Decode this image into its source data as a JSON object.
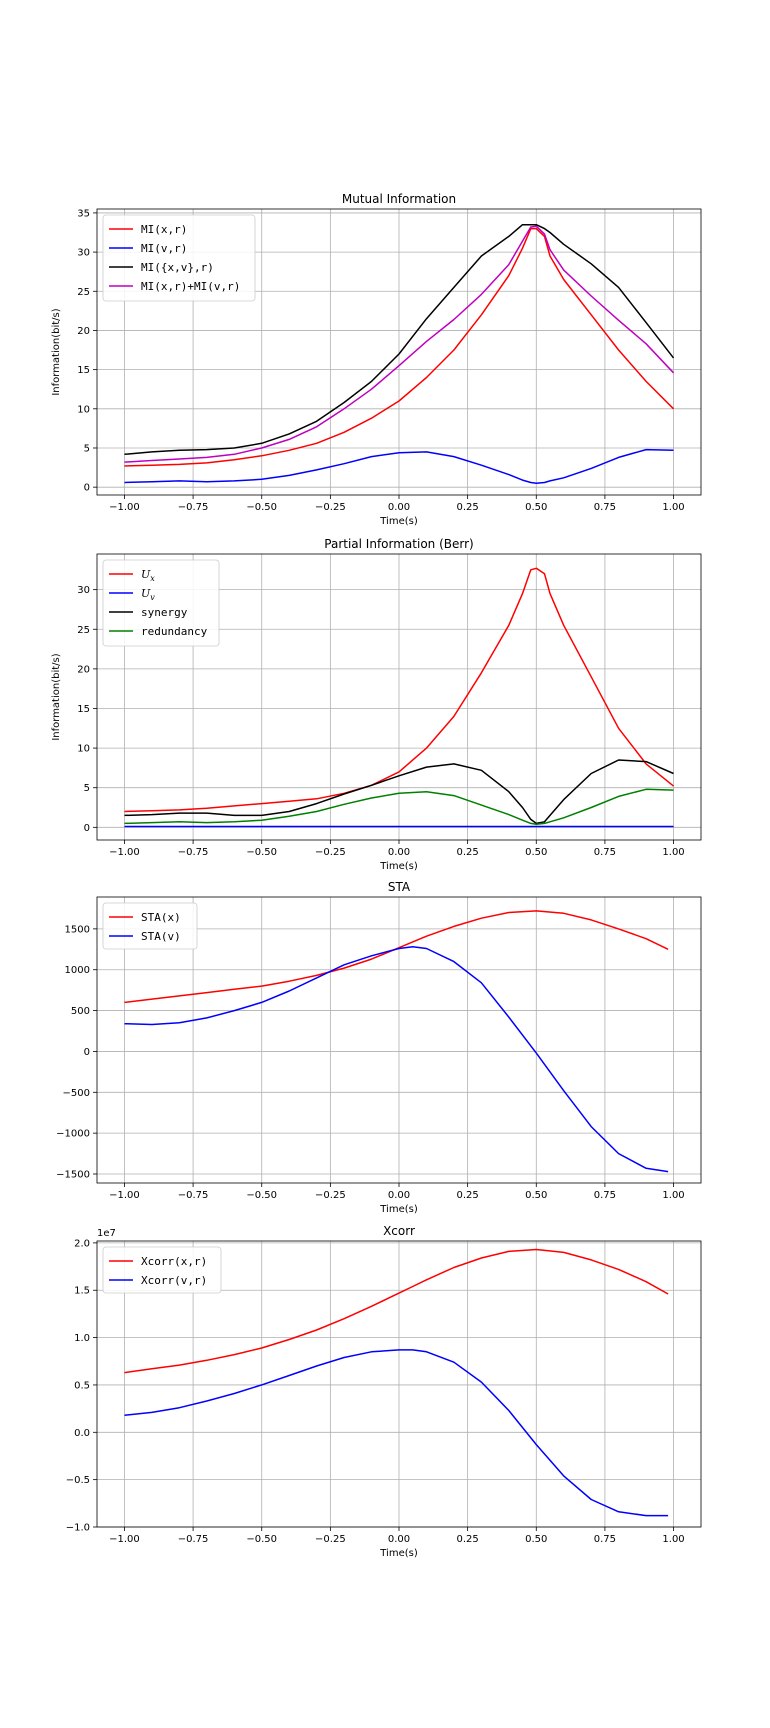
{
  "chart_data": [
    {
      "type": "line",
      "title": "Mutual Information",
      "xlabel": "Time(s)",
      "ylabel": "Information(bit/s)",
      "xlim": [
        -1.1,
        1.1
      ],
      "ylim": [
        -1,
        35.5
      ],
      "xticks": [
        -1.0,
        -0.75,
        -0.5,
        -0.25,
        0.0,
        0.25,
        0.5,
        0.75,
        1.0
      ],
      "xtick_labels": [
        "−1.00",
        "−0.75",
        "−0.50",
        "−0.25",
        "0.00",
        "0.25",
        "0.50",
        "0.75",
        "1.00"
      ],
      "yticks": [
        0,
        5,
        10,
        15,
        20,
        25,
        30,
        35
      ],
      "ytick_labels": [
        "0",
        "5",
        "10",
        "15",
        "20",
        "25",
        "30",
        "35"
      ],
      "grid": true,
      "legend_position": "top-left",
      "x": [
        -1.0,
        -0.9,
        -0.8,
        -0.7,
        -0.6,
        -0.5,
        -0.4,
        -0.3,
        -0.2,
        -0.1,
        0.0,
        0.1,
        0.2,
        0.3,
        0.4,
        0.45,
        0.48,
        0.5,
        0.53,
        0.55,
        0.6,
        0.7,
        0.8,
        0.9,
        1.0
      ],
      "series": [
        {
          "name": "MI(x,r)",
          "color": "#ff0000",
          "legend_label": {
            "text": "MI(x,r)"
          },
          "values": [
            2.7,
            2.8,
            2.9,
            3.1,
            3.5,
            4.0,
            4.7,
            5.6,
            7.0,
            8.8,
            11.0,
            14.0,
            17.5,
            22.0,
            27.0,
            30.5,
            33.0,
            33.0,
            32.0,
            29.5,
            26.5,
            22.0,
            17.5,
            13.5,
            10.0
          ]
        },
        {
          "name": "MI(v,r)",
          "color": "#0000ff",
          "legend_label": {
            "text": "MI(v,r)"
          },
          "values": [
            0.6,
            0.7,
            0.8,
            0.7,
            0.8,
            1.0,
            1.5,
            2.2,
            3.0,
            3.9,
            4.4,
            4.5,
            3.9,
            2.8,
            1.6,
            0.9,
            0.6,
            0.5,
            0.6,
            0.8,
            1.2,
            2.4,
            3.8,
            4.8,
            4.7
          ]
        },
        {
          "name": "MI({x,v},r)",
          "color": "#000000",
          "legend_label": {
            "text": "MI({x,v},r)"
          },
          "values": [
            4.2,
            4.5,
            4.7,
            4.8,
            5.0,
            5.6,
            6.8,
            8.4,
            10.8,
            13.5,
            17.0,
            21.5,
            25.5,
            29.5,
            32.0,
            33.5,
            33.5,
            33.5,
            33.0,
            32.5,
            31.0,
            28.5,
            25.5,
            21.0,
            16.5
          ]
        },
        {
          "name": "MI(x,r)+MI(v,r)",
          "color": "#bf00bf",
          "legend_label": {
            "text": "MI(x,r)+MI(v,r)"
          },
          "values": [
            3.2,
            3.4,
            3.6,
            3.8,
            4.2,
            5.0,
            6.1,
            7.7,
            10.0,
            12.5,
            15.5,
            18.6,
            21.4,
            24.6,
            28.4,
            31.4,
            33.2,
            33.3,
            32.3,
            30.3,
            27.7,
            24.4,
            21.3,
            18.3,
            14.6
          ]
        }
      ]
    },
    {
      "type": "line",
      "title": "Partial Information (Berr)",
      "xlabel": "Time(s)",
      "ylabel": "Information(bit/s)",
      "xlim": [
        -1.1,
        1.1
      ],
      "ylim": [
        -1.6,
        34.5
      ],
      "xticks": [
        -1.0,
        -0.75,
        -0.5,
        -0.25,
        0.0,
        0.25,
        0.5,
        0.75,
        1.0
      ],
      "xtick_labels": [
        "−1.00",
        "−0.75",
        "−0.50",
        "−0.25",
        "0.00",
        "0.25",
        "0.50",
        "0.75",
        "1.00"
      ],
      "yticks": [
        0,
        5,
        10,
        15,
        20,
        25,
        30
      ],
      "ytick_labels": [
        "0",
        "5",
        "10",
        "15",
        "20",
        "25",
        "30"
      ],
      "grid": true,
      "legend_position": "top-left",
      "x": [
        -1.0,
        -0.9,
        -0.8,
        -0.7,
        -0.6,
        -0.5,
        -0.4,
        -0.3,
        -0.2,
        -0.1,
        0.0,
        0.1,
        0.2,
        0.3,
        0.4,
        0.45,
        0.48,
        0.5,
        0.53,
        0.55,
        0.6,
        0.7,
        0.8,
        0.9,
        1.0
      ],
      "series": [
        {
          "name": "Ux",
          "color": "#ff0000",
          "legend_label": {
            "base": "U",
            "sub": "x"
          },
          "values": [
            2.0,
            2.1,
            2.2,
            2.4,
            2.7,
            3.0,
            3.3,
            3.6,
            4.3,
            5.3,
            7.0,
            10.0,
            14.0,
            19.5,
            25.5,
            29.5,
            32.5,
            32.7,
            32.0,
            29.5,
            25.5,
            19.0,
            12.5,
            8.0,
            5.2
          ]
        },
        {
          "name": "Uv",
          "color": "#0000ff",
          "legend_label": {
            "base": "U",
            "sub": "v"
          },
          "values": [
            0.1,
            0.1,
            0.1,
            0.1,
            0.1,
            0.1,
            0.1,
            0.1,
            0.1,
            0.1,
            0.1,
            0.1,
            0.1,
            0.1,
            0.1,
            0.1,
            0.1,
            0.1,
            0.1,
            0.1,
            0.1,
            0.1,
            0.1,
            0.1,
            0.1
          ]
        },
        {
          "name": "synergy",
          "color": "#000000",
          "legend_label": {
            "text": "synergy"
          },
          "values": [
            1.5,
            1.6,
            1.8,
            1.8,
            1.5,
            1.5,
            2.0,
            3.0,
            4.2,
            5.3,
            6.5,
            7.6,
            8.0,
            7.2,
            4.5,
            2.5,
            1.0,
            0.5,
            0.7,
            1.5,
            3.5,
            6.8,
            8.5,
            8.3,
            6.8
          ]
        },
        {
          "name": "redundancy",
          "color": "#008000",
          "legend_label": {
            "text": "redundancy"
          },
          "values": [
            0.5,
            0.6,
            0.7,
            0.6,
            0.7,
            0.9,
            1.4,
            2.0,
            2.9,
            3.7,
            4.3,
            4.5,
            4.0,
            2.8,
            1.6,
            0.9,
            0.5,
            0.4,
            0.5,
            0.7,
            1.2,
            2.5,
            3.9,
            4.8,
            4.7
          ]
        }
      ]
    },
    {
      "type": "line",
      "title": "STA",
      "xlabel": "Time(s)",
      "ylabel": "",
      "xlim": [
        -1.1,
        1.1
      ],
      "ylim": [
        -1610,
        1890
      ],
      "xticks": [
        -1.0,
        -0.75,
        -0.5,
        -0.25,
        0.0,
        0.25,
        0.5,
        0.75,
        1.0
      ],
      "xtick_labels": [
        "−1.00",
        "−0.75",
        "−0.50",
        "−0.25",
        "0.00",
        "0.25",
        "0.50",
        "0.75",
        "1.00"
      ],
      "yticks": [
        -1500,
        -1000,
        -500,
        0,
        500,
        1000,
        1500
      ],
      "ytick_labels": [
        "−1500",
        "−1000",
        "−500",
        "0",
        "500",
        "1000",
        "1500"
      ],
      "grid": true,
      "legend_position": "top-left",
      "x": [
        -1.0,
        -0.9,
        -0.8,
        -0.7,
        -0.6,
        -0.5,
        -0.4,
        -0.3,
        -0.2,
        -0.1,
        0.0,
        0.05,
        0.1,
        0.2,
        0.3,
        0.4,
        0.5,
        0.6,
        0.7,
        0.8,
        0.9,
        0.98
      ],
      "series": [
        {
          "name": "STA(x)",
          "color": "#ff0000",
          "legend_label": {
            "text": "STA(x)"
          },
          "values": [
            600,
            640,
            680,
            720,
            760,
            800,
            860,
            930,
            1020,
            1130,
            1270,
            1340,
            1410,
            1530,
            1630,
            1700,
            1720,
            1690,
            1610,
            1500,
            1380,
            1250
          ]
        },
        {
          "name": "STA(v)",
          "color": "#0000ff",
          "legend_label": {
            "text": "STA(v)"
          },
          "values": [
            340,
            330,
            350,
            410,
            500,
            600,
            740,
            900,
            1060,
            1170,
            1260,
            1280,
            1260,
            1100,
            840,
            420,
            -20,
            -480,
            -920,
            -1250,
            -1430,
            -1470
          ]
        }
      ]
    },
    {
      "type": "line",
      "title": "Xcorr",
      "xlabel": "Time(s)",
      "ylabel": "",
      "offset_text": "1e7",
      "xlim": [
        -1.1,
        1.1
      ],
      "ylim": [
        -1.0,
        2.02
      ],
      "xticks": [
        -1.0,
        -0.75,
        -0.5,
        -0.25,
        0.0,
        0.25,
        0.5,
        0.75,
        1.0
      ],
      "xtick_labels": [
        "−1.00",
        "−0.75",
        "−0.50",
        "−0.25",
        "0.00",
        "0.25",
        "0.50",
        "0.75",
        "1.00"
      ],
      "yticks": [
        -1.0,
        -0.5,
        0.0,
        0.5,
        1.0,
        1.5,
        2.0
      ],
      "ytick_labels": [
        "−1.0",
        "−0.5",
        "0.0",
        "0.5",
        "1.0",
        "1.5",
        "2.0"
      ],
      "grid": true,
      "legend_position": "top-left",
      "x": [
        -1.0,
        -0.9,
        -0.8,
        -0.7,
        -0.6,
        -0.5,
        -0.4,
        -0.3,
        -0.2,
        -0.1,
        0.0,
        0.05,
        0.1,
        0.2,
        0.3,
        0.4,
        0.5,
        0.6,
        0.7,
        0.8,
        0.9,
        0.98
      ],
      "series": [
        {
          "name": "Xcorr(x,r)",
          "color": "#ff0000",
          "legend_label": {
            "text": "Xcorr(x,r)"
          },
          "values": [
            0.63,
            0.67,
            0.71,
            0.76,
            0.82,
            0.89,
            0.98,
            1.08,
            1.2,
            1.33,
            1.47,
            1.54,
            1.61,
            1.74,
            1.84,
            1.91,
            1.93,
            1.9,
            1.82,
            1.72,
            1.59,
            1.46
          ]
        },
        {
          "name": "Xcorr(v,r)",
          "color": "#0000ff",
          "legend_label": {
            "text": "Xcorr(v,r)"
          },
          "values": [
            0.18,
            0.21,
            0.26,
            0.33,
            0.41,
            0.5,
            0.6,
            0.7,
            0.79,
            0.85,
            0.87,
            0.87,
            0.85,
            0.74,
            0.53,
            0.23,
            -0.13,
            -0.46,
            -0.71,
            -0.84,
            -0.88,
            -0.88
          ]
        }
      ]
    }
  ]
}
